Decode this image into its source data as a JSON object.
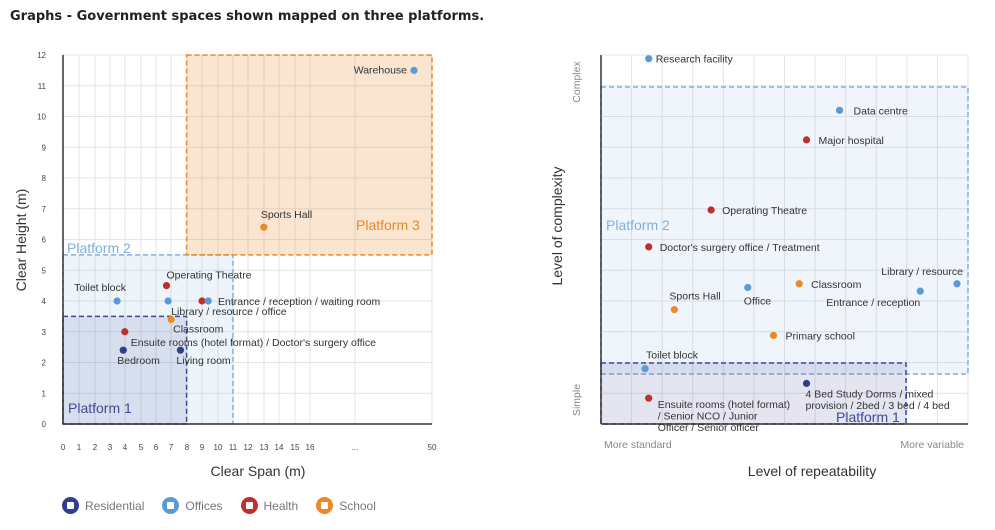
{
  "page_title": "Graphs - Government spaces shown mapped on three platforms.",
  "colors": {
    "residential": "#2f3f8f",
    "offices": "#5b9bd5",
    "health": "#c0302a",
    "school": "#e8892b",
    "platform1": "#3d4a9a",
    "platform2": "#7fb0dd",
    "platform3": "#e8892b"
  },
  "legend": [
    {
      "label": "Residential",
      "key": "residential",
      "icon": "residential-icon"
    },
    {
      "label": "Offices",
      "key": "offices",
      "icon": "offices-icon"
    },
    {
      "label": "Health",
      "key": "health",
      "icon": "health-cross-icon"
    },
    {
      "label": "School",
      "key": "school",
      "icon": "school-book-icon"
    }
  ],
  "chart_data": [
    {
      "type": "scatter",
      "title": "",
      "xlabel": "Clear Span (m)",
      "ylabel": "Clear Height (m)",
      "x_ticks": [
        "0",
        "1",
        "2",
        "3",
        "4",
        "5",
        "6",
        "7",
        "8",
        "9",
        "10",
        "11",
        "12",
        "13",
        "14",
        "15",
        "16",
        "...",
        "50"
      ],
      "y_ticks": [
        "0",
        "1",
        "2",
        "3",
        "4",
        "5",
        "6",
        "7",
        "8",
        "9",
        "10",
        "11",
        "12"
      ],
      "ylim": [
        0,
        12
      ],
      "x_axis_note": "broken axis: 0–16 linear, then ... to 50",
      "grid": true,
      "platforms": [
        {
          "label": "Platform 1",
          "x": [
            0,
            8
          ],
          "y": [
            0,
            3.5
          ]
        },
        {
          "label": "Platform 2",
          "x": [
            0,
            11
          ],
          "y": [
            0,
            5.5
          ]
        },
        {
          "label": "Platform 3",
          "x": [
            8,
            50
          ],
          "y": [
            5.5,
            12
          ]
        }
      ],
      "points": [
        {
          "label": "Warehouse",
          "x": 48,
          "y": 11.5,
          "category": "offices"
        },
        {
          "label": "Sports Hall",
          "x": 13,
          "y": 6.4,
          "category": "school"
        },
        {
          "label": "Operating Theatre",
          "x": 6.7,
          "y": 4.5,
          "category": "health"
        },
        {
          "label": "Toilet block",
          "x": 3.5,
          "y": 4.0,
          "category": "offices"
        },
        {
          "label": "",
          "x": 6.8,
          "y": 4.0,
          "category": "offices"
        },
        {
          "label": "Entrance / reception / waiting room",
          "x": 9,
          "y": 4.0,
          "category": "health"
        },
        {
          "label": "Library / resource / office",
          "x": 9.4,
          "y": 4.0,
          "category": "offices"
        },
        {
          "label": "Classroom",
          "x": 7,
          "y": 3.4,
          "category": "school"
        },
        {
          "label": "Ensuite rooms (hotel format) / Doctor's surgery office",
          "x": 4,
          "y": 3.0,
          "category": "health"
        },
        {
          "label": "Bedroom",
          "x": 3.9,
          "y": 2.4,
          "category": "residential"
        },
        {
          "label": "Living room",
          "x": 7.6,
          "y": 2.4,
          "category": "residential"
        }
      ]
    },
    {
      "type": "scatter",
      "title": "",
      "xlabel": "Level of repeatability",
      "ylabel": "Level of complexity",
      "x_tick_labels": [
        "More standard",
        "More variable"
      ],
      "y_tick_labels": [
        "Simple",
        "Complex"
      ],
      "grid": true,
      "platforms": [
        {
          "label": "Platform 1",
          "x": [
            0,
            0.83
          ],
          "y": [
            0,
            0.1
          ]
        },
        {
          "label": "Platform 2",
          "x": [
            0,
            1
          ],
          "y": [
            0,
            0.88
          ]
        },
        {
          "label": "",
          "x": [
            0,
            1
          ],
          "y": [
            0,
            0.12
          ]
        }
      ],
      "points": [
        {
          "label": "Research facility",
          "x": 0.13,
          "y": 0.99,
          "category": "offices"
        },
        {
          "label": "Data centre",
          "x": 0.65,
          "y": 0.85,
          "category": "offices"
        },
        {
          "label": "Major hospital",
          "x": 0.56,
          "y": 0.77,
          "category": "health"
        },
        {
          "label": "Operating Theatre",
          "x": 0.3,
          "y": 0.58,
          "category": "health"
        },
        {
          "label": "Doctor's surgery office / Treatment",
          "x": 0.13,
          "y": 0.48,
          "category": "health"
        },
        {
          "label": "Library / resource",
          "x": 0.97,
          "y": 0.38,
          "category": "offices"
        },
        {
          "label": "Entrance / reception",
          "x": 0.87,
          "y": 0.36,
          "category": "offices"
        },
        {
          "label": "Classroom",
          "x": 0.54,
          "y": 0.38,
          "category": "school"
        },
        {
          "label": "Office",
          "x": 0.4,
          "y": 0.37,
          "category": "offices"
        },
        {
          "label": "Sports Hall",
          "x": 0.2,
          "y": 0.31,
          "category": "school"
        },
        {
          "label": "Primary school",
          "x": 0.47,
          "y": 0.24,
          "category": "school"
        },
        {
          "label": "Toilet block",
          "x": 0.12,
          "y": 0.15,
          "category": "offices"
        },
        {
          "label": "4 Bed Study Dorms / mixed provision / 2bed / 3 bed / 4 bed",
          "x": 0.56,
          "y": 0.11,
          "category": "residential"
        },
        {
          "label": "Ensuite rooms (hotel format) / Senior NCO / Junior Officer / Senior officer",
          "x": 0.13,
          "y": 0.07,
          "category": "health"
        }
      ]
    }
  ]
}
